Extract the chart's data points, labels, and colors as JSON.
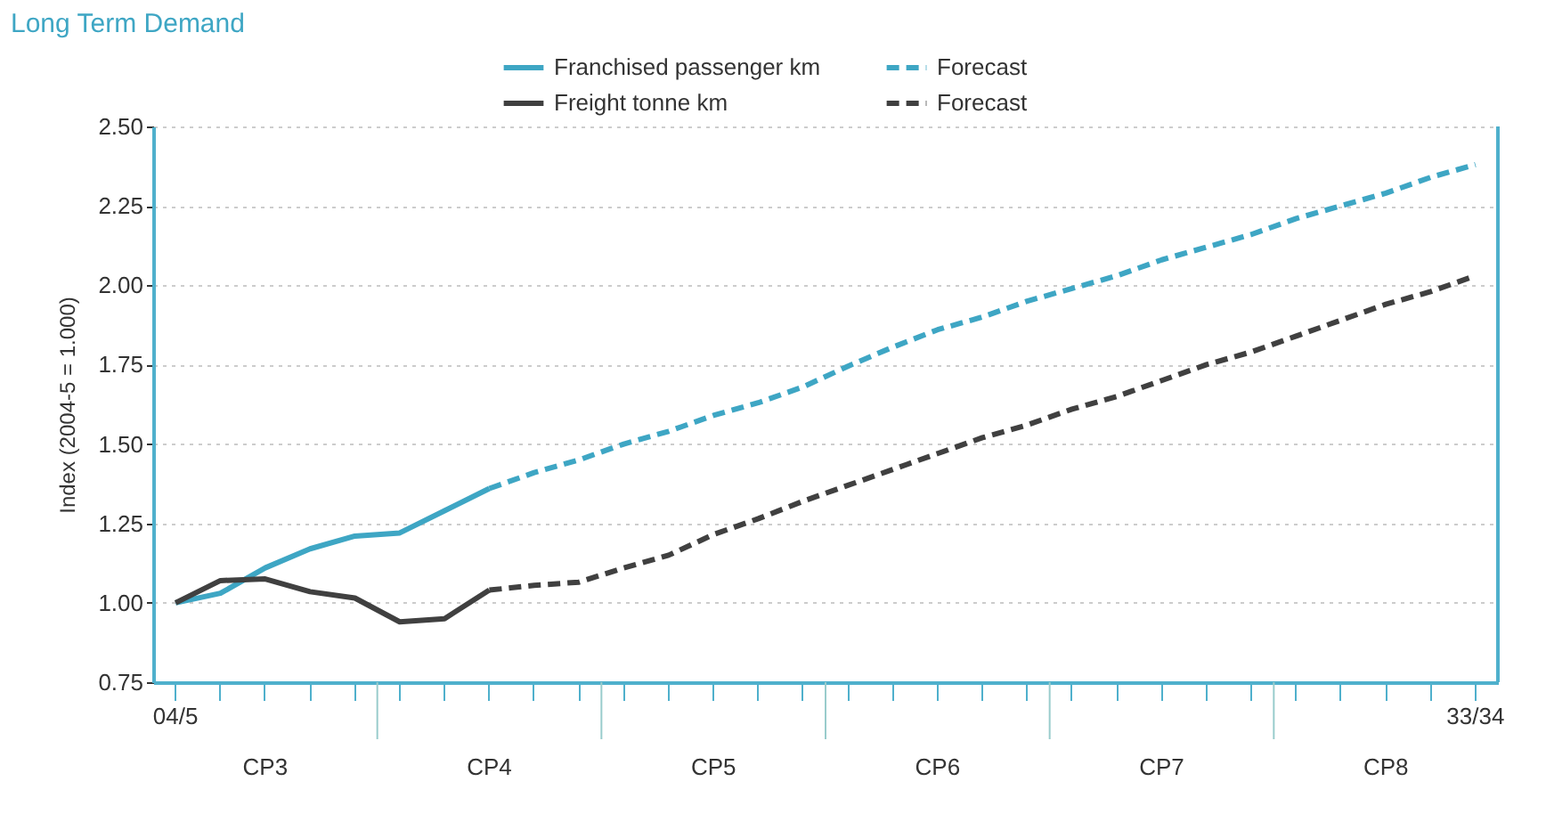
{
  "chart_data": {
    "type": "line",
    "title": "Long Term Demand",
    "ylabel": "Index (2004-5 = 1.000)",
    "categories": [
      "04/5",
      null,
      null,
      null,
      null,
      null,
      null,
      null,
      null,
      null,
      null,
      null,
      null,
      null,
      null,
      null,
      null,
      null,
      null,
      null,
      null,
      null,
      null,
      null,
      null,
      null,
      null,
      null,
      null,
      "33/34"
    ],
    "series": [
      {
        "name": "Franchised passenger km",
        "color": "#3ea6c4",
        "line_style": "solid",
        "values": [
          1.0,
          1.03,
          1.11,
          1.17,
          1.21,
          1.22,
          1.29,
          1.36,
          null,
          null,
          null,
          null,
          null,
          null,
          null,
          null,
          null,
          null,
          null,
          null,
          null,
          null,
          null,
          null,
          null,
          null,
          null,
          null,
          null,
          null
        ]
      },
      {
        "name": "Forecast",
        "color": "#3ea6c4",
        "line_style": "dashed",
        "values": [
          null,
          null,
          null,
          null,
          null,
          null,
          null,
          1.36,
          1.41,
          1.45,
          1.5,
          1.54,
          1.59,
          1.63,
          1.68,
          1.745,
          1.805,
          1.86,
          1.9,
          1.95,
          1.99,
          2.03,
          2.08,
          2.12,
          2.16,
          2.21,
          2.25,
          2.29,
          2.34,
          2.38
        ]
      },
      {
        "name": "Freight tonne km",
        "color": "#404040",
        "line_style": "solid",
        "values": [
          1.0,
          1.07,
          1.075,
          1.035,
          1.015,
          0.94,
          0.95,
          1.04,
          null,
          null,
          null,
          null,
          null,
          null,
          null,
          null,
          null,
          null,
          null,
          null,
          null,
          null,
          null,
          null,
          null,
          null,
          null,
          null,
          null,
          null
        ]
      },
      {
        "name": "Forecast",
        "color": "#404040",
        "line_style": "dashed",
        "values": [
          null,
          null,
          null,
          null,
          null,
          null,
          null,
          1.04,
          1.055,
          1.065,
          1.11,
          1.15,
          1.215,
          1.265,
          1.32,
          1.37,
          1.42,
          1.47,
          1.52,
          1.56,
          1.61,
          1.65,
          1.7,
          1.75,
          1.79,
          1.84,
          1.89,
          1.94,
          1.98,
          2.03
        ]
      }
    ],
    "ylim": [
      0.75,
      2.5
    ],
    "yticks": [
      {
        "value": 0.75,
        "label": "0.75"
      },
      {
        "value": 1,
        "label": "1.00"
      },
      {
        "value": 1.25,
        "label": "1.25"
      },
      {
        "value": 1.5,
        "label": "1.50"
      },
      {
        "value": 1.75,
        "label": "1.75"
      },
      {
        "value": 2,
        "label": "2.00"
      },
      {
        "value": 2.25,
        "label": "2.25"
      },
      {
        "value": 2.5,
        "label": "2.50"
      }
    ],
    "grid": "y",
    "legend": "top right",
    "annotations": [
      "CP3",
      "CP4",
      "CP5",
      "CP6",
      "CP7",
      "CP8"
    ]
  }
}
